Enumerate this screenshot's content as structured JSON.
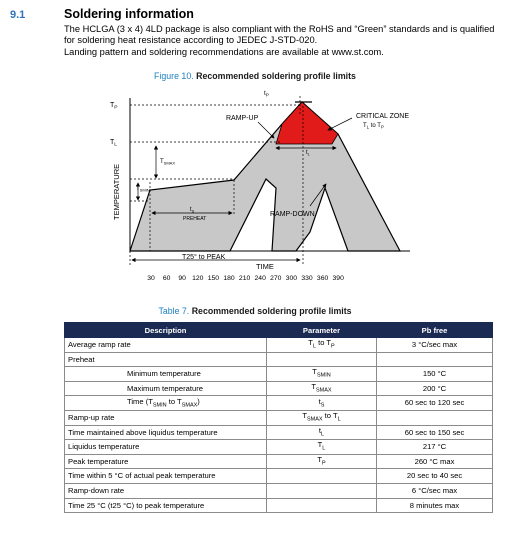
{
  "section": {
    "number": "9.1",
    "title": "Soldering information",
    "paragraph1": "The HCLGA (3 x 4) 4LD package is also compliant with the RoHS and “Green” standards and is qualified for soldering heat resistance according to JEDEC J-STD-020.",
    "paragraph2": "Landing pattern and soldering recommendations are available at www.st.com."
  },
  "figure": {
    "number": "Figure 10.",
    "title": "Recommended soldering profile limits",
    "labels": {
      "tp_top": "t",
      "tp_top_sub": "P",
      "ramp_up": "RAMP-UP",
      "critical_zone": "CRITICAL ZONE",
      "critical_sub": "T",
      "critical_sub_l": "L",
      "critical_to": " to T",
      "critical_sub_p": "P",
      "y_tp": "T",
      "y_tp_sub": "P",
      "y_tl": "T",
      "y_tl_sub": "L",
      "tsmax": "T",
      "tsmax_sub": "SMAX",
      "tsmin": "T",
      "tsmin_sub": "SMIN",
      "temperature": "TEMPERATURE",
      "ts": "t",
      "ts_sub": "S",
      "preheat": "PREHEAT",
      "tl": "t",
      "tl_sub": "L",
      "ramp_down": "RAMP-DOWN",
      "t25_to_peak": "T25° to PEAK",
      "time": "TIME"
    },
    "time_ticks": [
      "30",
      "60",
      "90",
      "120",
      "150",
      "180",
      "210",
      "240",
      "270",
      "300",
      "330",
      "360",
      "390"
    ],
    "colors": {
      "critical": "#e11a1a",
      "band": "#c8c8c8"
    }
  },
  "table": {
    "number": "Table 7.",
    "title": "Recommended soldering profile limits",
    "headers": [
      "Description",
      "Parameter",
      "Pb free"
    ],
    "rows": [
      {
        "desc": "Average ramp rate",
        "param": "T",
        "param_sub1": "L",
        "param_mid": " to T",
        "param_sub2": "P",
        "value": "3 °C/sec max",
        "indent": false
      },
      {
        "desc": "Preheat",
        "param": "",
        "value": "",
        "indent": false
      },
      {
        "desc": "Minimum temperature",
        "param": "T",
        "param_sub1": "SMIN",
        "value": "150 °C",
        "indent": true
      },
      {
        "desc": "Maximum temperature",
        "param": "T",
        "param_sub1": "SMAX",
        "value": "200 °C",
        "indent": true
      },
      {
        "desc": "Time (T",
        "desc_sub1": "SMIN",
        "desc_mid": " to T",
        "desc_sub2": "SMAX",
        "desc_end": ")",
        "param": "t",
        "param_sub1": "S",
        "value": "60 sec to 120 sec",
        "indent": true
      },
      {
        "desc": "Ramp-up rate",
        "param": "T",
        "param_sub1": "SMAX",
        "param_mid": " to T",
        "param_sub2": "L",
        "value": "",
        "indent": false
      },
      {
        "desc": "Time maintained above liquidus temperature",
        "param": "t",
        "param_sub1": "L",
        "value": "60 sec to 150 sec",
        "indent": false
      },
      {
        "desc": "Liquidus temperature",
        "param": "T",
        "param_sub1": "L",
        "value": "217 °C",
        "indent": false
      },
      {
        "desc": "Peak temperature",
        "param": "T",
        "param_sub1": "P",
        "value": "260 °C max",
        "indent": false
      },
      {
        "desc": "Time within 5 °C of actual peak temperature",
        "param": "",
        "value": "20 sec to 40 sec",
        "indent": false
      },
      {
        "desc": "Ramp-down rate",
        "param": "",
        "value": "6 °C/sec max",
        "indent": false
      },
      {
        "desc": "Time 25 °C (t25 °C) to peak temperature",
        "param": "",
        "value": "8 minutes max",
        "indent": false
      }
    ]
  }
}
